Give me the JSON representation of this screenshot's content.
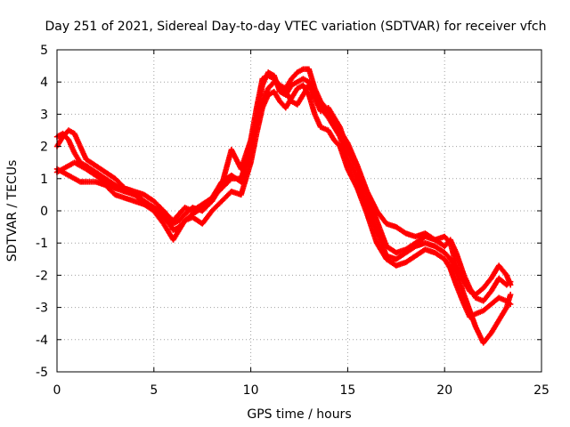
{
  "chart_data": {
    "type": "scatter",
    "title": "Day 251 of 2021, Sidereal Day-to-day VTEC variation (SDTVAR) for receiver vfch",
    "xlabel": "GPS time / hours",
    "ylabel": "SDTVAR / TECUs",
    "xlim": [
      0,
      25
    ],
    "ylim": [
      -5,
      5
    ],
    "xticks": [
      "0",
      "5",
      "10",
      "15",
      "20",
      "25"
    ],
    "yticks": [
      "-5",
      "-4",
      "-3",
      "-2",
      "-1",
      "0",
      "1",
      "2",
      "3",
      "4",
      "5"
    ],
    "grid": true,
    "marker": "plus",
    "color": "#ff0000",
    "series": [
      {
        "x": [
          0.0,
          0.3,
          0.6,
          0.9,
          1.2,
          1.5,
          2.0,
          2.5,
          3.0,
          3.5,
          4.0,
          4.5,
          5.0,
          5.5,
          5.8,
          6.0,
          6.3,
          6.6,
          7.0,
          7.5,
          8.0,
          8.5,
          9.0,
          9.5,
          10.0,
          10.3,
          10.6,
          10.9,
          11.2,
          11.5,
          11.8,
          12.1,
          12.4,
          12.7,
          13.0,
          13.3,
          13.6,
          14.0,
          14.3,
          14.6,
          15.0,
          15.5,
          16.0,
          16.5,
          17.0,
          17.5,
          18.0,
          18.5,
          19.0,
          19.5,
          20.0,
          20.3,
          20.6,
          21.0,
          21.3,
          21.6,
          22.0,
          22.4,
          22.8,
          23.2,
          23.4
        ],
        "y": [
          2.0,
          2.3,
          2.5,
          2.4,
          2.0,
          1.6,
          1.4,
          1.2,
          1.0,
          0.7,
          0.6,
          0.5,
          0.3,
          0.0,
          -0.2,
          -0.3,
          -0.1,
          0.1,
          0.0,
          0.2,
          0.4,
          0.9,
          1.1,
          0.9,
          1.8,
          2.9,
          3.9,
          4.3,
          4.2,
          3.7,
          3.6,
          3.9,
          4.0,
          4.1,
          4.0,
          3.5,
          3.1,
          3.2,
          2.9,
          2.6,
          1.9,
          1.3,
          0.5,
          -0.3,
          -1.1,
          -1.3,
          -1.2,
          -1.0,
          -0.8,
          -0.9,
          -1.1,
          -0.9,
          -1.3,
          -2.0,
          -2.4,
          -2.7,
          -2.8,
          -2.5,
          -2.1,
          -2.3,
          -2.2
        ]
      },
      {
        "x": [
          0.0,
          0.3,
          0.6,
          0.9,
          1.2,
          1.5,
          2.0,
          2.5,
          3.0,
          3.5,
          4.0,
          4.5,
          5.0,
          5.5,
          5.8,
          6.0,
          6.3,
          6.6,
          7.0,
          7.5,
          8.0,
          8.5,
          9.0,
          9.5,
          10.0,
          10.3,
          10.6,
          10.9,
          11.2,
          11.5,
          11.8,
          12.1,
          12.4,
          12.7,
          13.0,
          13.3,
          13.6,
          14.0,
          14.3,
          14.6,
          15.0,
          15.5,
          16.0,
          16.5,
          17.0,
          17.5,
          18.0,
          18.5,
          19.0,
          19.5,
          20.0,
          20.3,
          20.6,
          21.0,
          21.3,
          21.6,
          22.0,
          22.4,
          22.8,
          23.2,
          23.4
        ],
        "y": [
          1.2,
          1.3,
          1.4,
          1.5,
          1.4,
          1.3,
          1.1,
          0.9,
          0.7,
          0.6,
          0.5,
          0.3,
          0.1,
          -0.2,
          -0.4,
          -0.6,
          -0.5,
          -0.3,
          -0.1,
          0.1,
          0.4,
          0.7,
          1.0,
          1.0,
          2.0,
          2.8,
          3.4,
          3.8,
          4.0,
          3.9,
          3.7,
          3.4,
          3.3,
          3.6,
          3.9,
          3.7,
          3.2,
          2.9,
          2.6,
          2.3,
          1.6,
          1.0,
          0.2,
          -0.6,
          -1.4,
          -1.5,
          -1.3,
          -1.1,
          -1.0,
          -1.1,
          -1.3,
          -1.5,
          -1.9,
          -2.6,
          -3.1,
          -3.6,
          -4.1,
          -3.8,
          -3.4,
          -3.0,
          -2.6
        ]
      },
      {
        "x": [
          0.0,
          0.3,
          0.6,
          0.9,
          1.2,
          1.5,
          2.0,
          2.5,
          3.0,
          3.5,
          4.0,
          4.5,
          5.0,
          5.5,
          5.8,
          6.0,
          6.3,
          6.6,
          7.0,
          7.5,
          8.0,
          8.5,
          9.0,
          9.5,
          10.0,
          10.3,
          10.6,
          10.9,
          11.2,
          11.5,
          11.8,
          12.1,
          12.4,
          12.7,
          13.0,
          13.3,
          13.6,
          14.0,
          14.3,
          14.6,
          15.0,
          15.5,
          16.0,
          16.5,
          17.0,
          17.5,
          18.0,
          18.5,
          19.0,
          19.5,
          20.0,
          20.3,
          20.6,
          21.0,
          21.3,
          21.6,
          22.0,
          22.4,
          22.8,
          23.2,
          23.4
        ],
        "y": [
          1.3,
          1.2,
          1.1,
          1.0,
          0.9,
          0.9,
          0.9,
          0.8,
          0.5,
          0.4,
          0.3,
          0.2,
          0.0,
          -0.4,
          -0.7,
          -0.9,
          -0.6,
          -0.3,
          -0.2,
          -0.4,
          0.0,
          0.3,
          0.6,
          0.5,
          1.5,
          2.4,
          3.2,
          3.6,
          3.7,
          3.4,
          3.2,
          3.5,
          3.8,
          3.9,
          3.6,
          3.0,
          2.6,
          2.5,
          2.2,
          2.0,
          1.3,
          0.7,
          -0.1,
          -1.0,
          -1.5,
          -1.7,
          -1.6,
          -1.4,
          -1.2,
          -1.3,
          -1.5,
          -1.8,
          -2.3,
          -2.9,
          -3.3,
          -3.2,
          -3.1,
          -2.9,
          -2.7,
          -2.8,
          -2.9
        ]
      },
      {
        "x": [
          0.0,
          0.3,
          0.6,
          0.9,
          1.2,
          1.5,
          2.0,
          2.5,
          3.0,
          3.5,
          4.0,
          4.5,
          5.0,
          5.5,
          5.8,
          6.0,
          6.3,
          6.6,
          7.0,
          7.5,
          8.0,
          8.5,
          9.0,
          9.5,
          10.0,
          10.3,
          10.6,
          10.9,
          11.2,
          11.5,
          11.8,
          12.1,
          12.4,
          12.7,
          13.0,
          13.3,
          13.6,
          14.0,
          14.3,
          14.6,
          15.0,
          15.5,
          16.0,
          16.5,
          17.0,
          17.5,
          18.0,
          18.5,
          19.0,
          19.5,
          20.0,
          20.3,
          20.6,
          21.0,
          21.3,
          21.6,
          22.0,
          22.4,
          22.8,
          23.2,
          23.4
        ],
        "y": [
          2.3,
          2.4,
          2.2,
          1.8,
          1.5,
          1.4,
          1.2,
          1.0,
          0.8,
          0.6,
          0.5,
          0.3,
          0.1,
          -0.1,
          -0.3,
          -0.4,
          -0.3,
          -0.1,
          0.1,
          0.0,
          0.3,
          0.8,
          1.9,
          1.3,
          2.2,
          3.2,
          4.1,
          4.2,
          4.1,
          3.9,
          3.8,
          4.1,
          4.3,
          4.4,
          4.4,
          3.8,
          3.4,
          3.1,
          2.7,
          2.5,
          2.1,
          1.4,
          0.6,
          0.0,
          -0.4,
          -0.5,
          -0.7,
          -0.8,
          -0.7,
          -0.9,
          -0.8,
          -1.0,
          -1.7,
          -2.2,
          -2.5,
          -2.6,
          -2.4,
          -2.1,
          -1.7,
          -2.0,
          -2.3
        ]
      }
    ]
  }
}
